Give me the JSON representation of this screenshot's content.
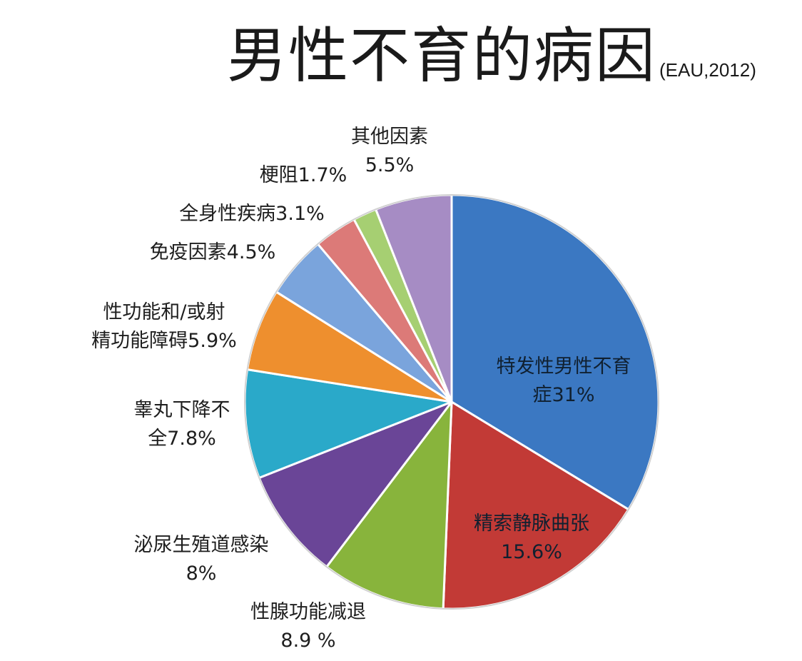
{
  "title": {
    "main": "男性不育的病因",
    "source": "(EAU,2012)"
  },
  "chart_data": {
    "type": "pie",
    "unit": "%",
    "start": "12 o'clock, clockwise",
    "legend": "none (labels beside slices)",
    "slices": [
      {
        "label": "特发性男性不育症",
        "value": 31,
        "color": "#3b78c2",
        "text_lines": [
          "特发性男性不育",
          "症31%"
        ]
      },
      {
        "label": "精索静脉曲张",
        "value": 15.6,
        "color": "#c23a36",
        "text_lines": [
          "精索静脉曲张",
          "15.6%"
        ]
      },
      {
        "label": "性腺功能减退",
        "value": 8.9,
        "color": "#88b43c",
        "text_lines": [
          "性腺功能减退",
          "8.9 %"
        ]
      },
      {
        "label": "泌尿生殖道感染",
        "value": 8,
        "color": "#6a4597",
        "text_lines": [
          "泌尿生殖道感染",
          "8%"
        ]
      },
      {
        "label": "睾丸下降不全",
        "value": 7.8,
        "color": "#2aa9c9",
        "text_lines": [
          "睾丸下降不",
          "全7.8%"
        ]
      },
      {
        "label": "性功能和/或射精功能障碍",
        "value": 5.9,
        "color": "#ee8f2e",
        "text_lines": [
          "性功能和/或射",
          "精功能障碍5.9%"
        ]
      },
      {
        "label": "免疫因素",
        "value": 4.5,
        "color": "#7aa4dc",
        "text_lines": [
          "免疫因素4.5%"
        ]
      },
      {
        "label": "全身性疾病",
        "value": 3.1,
        "color": "#dc7a78",
        "text_lines": [
          "全身性疾病3.1%"
        ]
      },
      {
        "label": "梗阻",
        "value": 1.7,
        "color": "#a6cf72",
        "text_lines": [
          "梗阻1.7%"
        ]
      },
      {
        "label": "其他因素",
        "value": 5.5,
        "color": "#a68cc4",
        "text_lines": [
          "其他因素",
          "5.5%"
        ]
      }
    ]
  }
}
